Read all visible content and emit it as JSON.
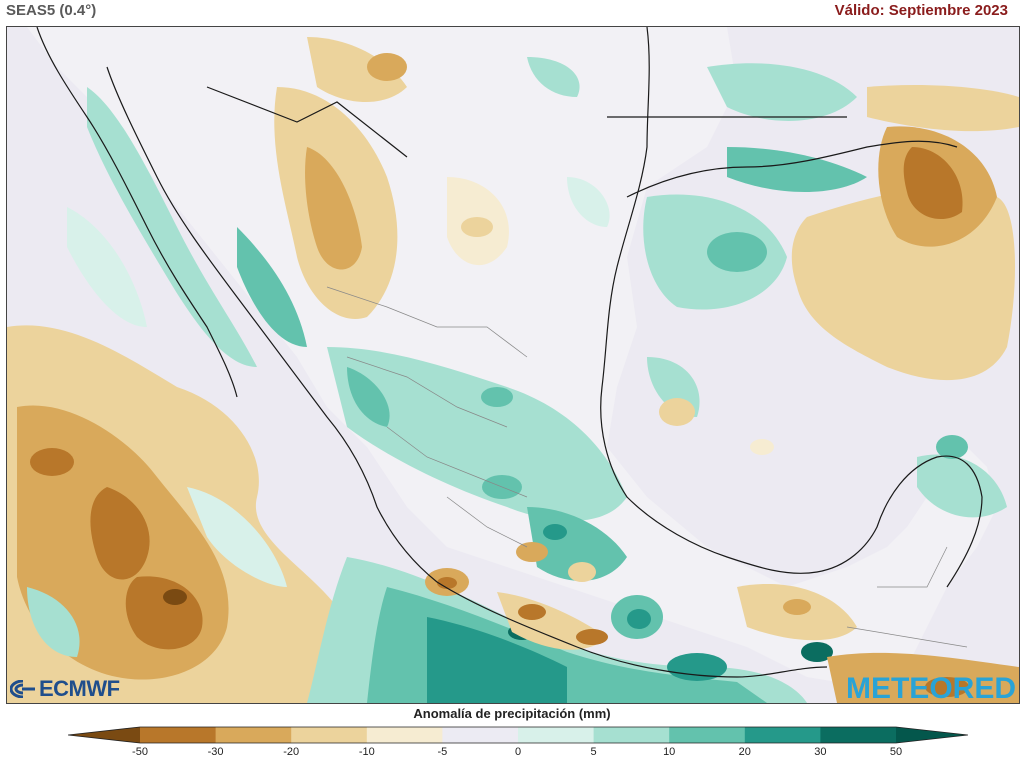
{
  "header": {
    "model": "SEAS5 (0.4°)",
    "valid": "Válido: Septiembre 2023"
  },
  "legend": {
    "title": "Anomalía de precipitación (mm)",
    "ticks": [
      "-50",
      "-30",
      "-20",
      "-10",
      "-5",
      "0",
      "5",
      "10",
      "20",
      "30",
      "50"
    ],
    "colors": [
      "#7a4a12",
      "#b8772a",
      "#d9a95b",
      "#ecd39c",
      "#f6ecd2",
      "#ecebf3",
      "#d8f1ea",
      "#a6e0d1",
      "#63c2ad",
      "#25998a",
      "#0b6d60",
      "#04574c"
    ]
  },
  "logos": {
    "left": "ECMWF",
    "right": "METEORED"
  }
}
